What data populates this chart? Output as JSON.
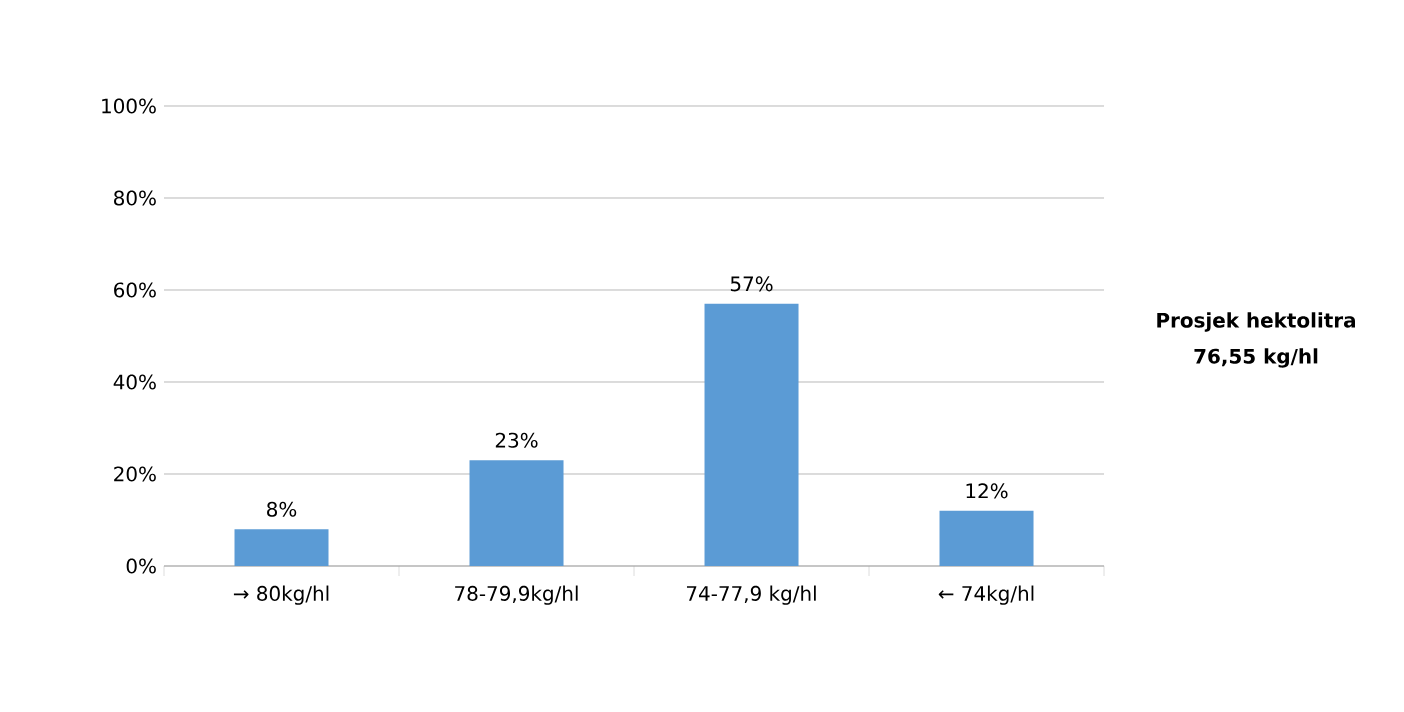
{
  "chart_data": {
    "type": "bar",
    "categories": [
      "→ 80kg/hl",
      "78-79,9kg/hl",
      "74-77,9 kg/hl",
      "← 74kg/hl"
    ],
    "values": [
      8,
      23,
      57,
      12
    ],
    "value_labels": [
      "8%",
      "23%",
      "57%",
      "12%"
    ],
    "color": "#5b9bd5",
    "ylim": [
      0,
      100
    ],
    "yticks": [
      {
        "value": 0,
        "label": "0%"
      },
      {
        "value": 20,
        "label": "20%"
      },
      {
        "value": 40,
        "label": "40%"
      },
      {
        "value": 60,
        "label": "60%"
      },
      {
        "value": 80,
        "label": "80%"
      },
      {
        "value": 100,
        "label": "100%"
      }
    ],
    "grid": "y",
    "annotations": [
      "Prosjek hektolitra",
      "76,55 kg/hl"
    ]
  }
}
